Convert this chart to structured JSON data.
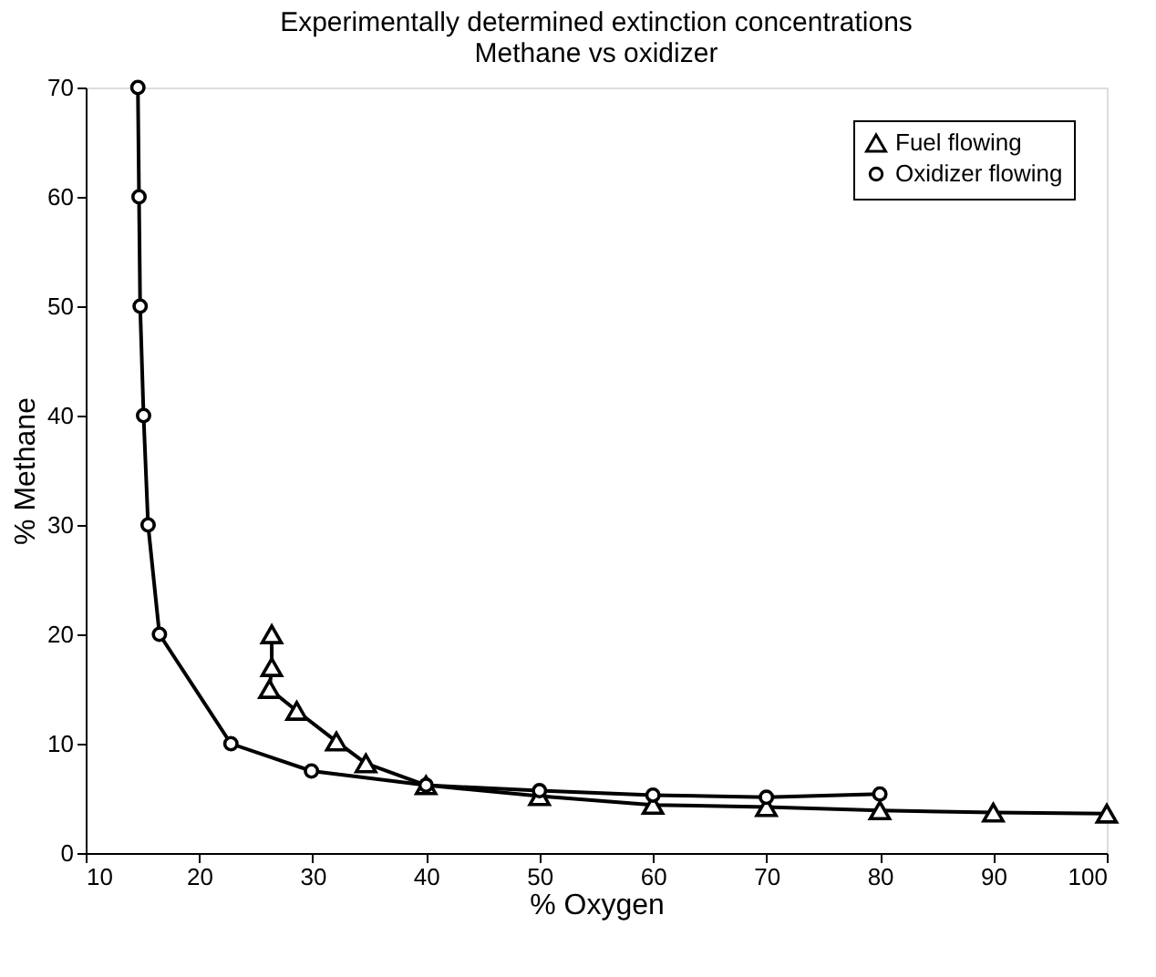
{
  "chart_data": {
    "type": "line",
    "title": "Experimentally determined extinction concentrations\nMethane vs oxidizer",
    "xlabel": "% Oxygen",
    "ylabel": "% Methane",
    "xlim": [
      10,
      100
    ],
    "xticks": [
      10,
      20,
      30,
      40,
      50,
      60,
      70,
      80,
      90,
      100
    ],
    "ylim": [
      0,
      70
    ],
    "yticks": [
      0,
      10,
      20,
      30,
      40,
      50,
      60,
      70
    ],
    "grid": false,
    "legend": "top right",
    "line_style": "solid",
    "series": [
      {
        "name": "Fuel flowing",
        "color": "#000000",
        "marker": "triangle",
        "x": [
          26.4,
          26.4,
          26.2,
          28.6,
          32.1,
          34.7,
          40,
          50,
          60,
          70,
          80,
          90,
          100
        ],
        "values": [
          20,
          17,
          15,
          13,
          10.2,
          8.2,
          6.2,
          5.2,
          4.4,
          4.2,
          3.9,
          3.7,
          3.6
        ]
      },
      {
        "name": "Oxidizer flowing",
        "color": "#000000",
        "marker": "circle",
        "x": [
          14.6,
          14.7,
          14.8,
          15.1,
          15.5,
          16.5,
          22.8,
          29.9,
          40,
          50,
          60,
          70,
          80
        ],
        "values": [
          70,
          60,
          50,
          40,
          30,
          20,
          10,
          7.5,
          6.2,
          5.7,
          5.3,
          5.1,
          5.4
        ]
      }
    ]
  }
}
